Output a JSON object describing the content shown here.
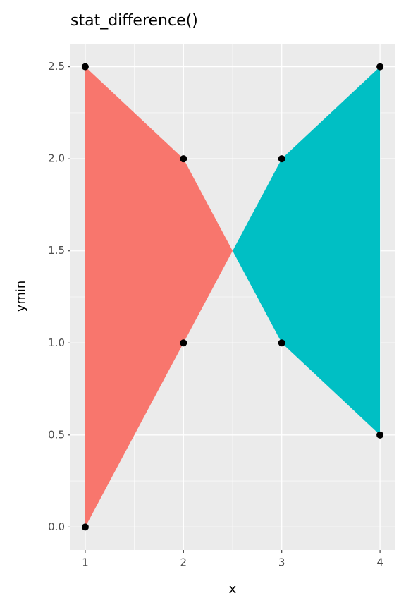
{
  "chart_data": {
    "type": "difference",
    "title": "stat_difference()",
    "x_label": "x",
    "y_label": "ymin",
    "x": [
      1,
      2,
      3,
      4
    ],
    "series": [
      {
        "values": [
          0,
          1,
          2,
          2.5
        ]
      },
      {
        "values": [
          2.5,
          2,
          1,
          0.5
        ]
      }
    ],
    "fill_colors": [
      "#F8766D",
      "#00BFC4"
    ],
    "point_color": "#000000",
    "xlim": [
      0.85,
      4.15
    ],
    "ylim": [
      -0.125,
      2.625
    ],
    "xticks": [
      1,
      2,
      3,
      4
    ],
    "yticks": [
      {
        "value": 0,
        "label": "0.0"
      },
      0.5,
      {
        "value": 1,
        "label": "1.0"
      },
      1.5,
      {
        "value": 2,
        "label": "2.0"
      },
      2.5
    ],
    "xminor": [
      1.5,
      2.5,
      3.5
    ],
    "yminor": [
      0.25,
      0.75,
      1.25,
      1.75,
      2.25
    ],
    "grid": true,
    "panel_color": "#EBEBEB"
  }
}
